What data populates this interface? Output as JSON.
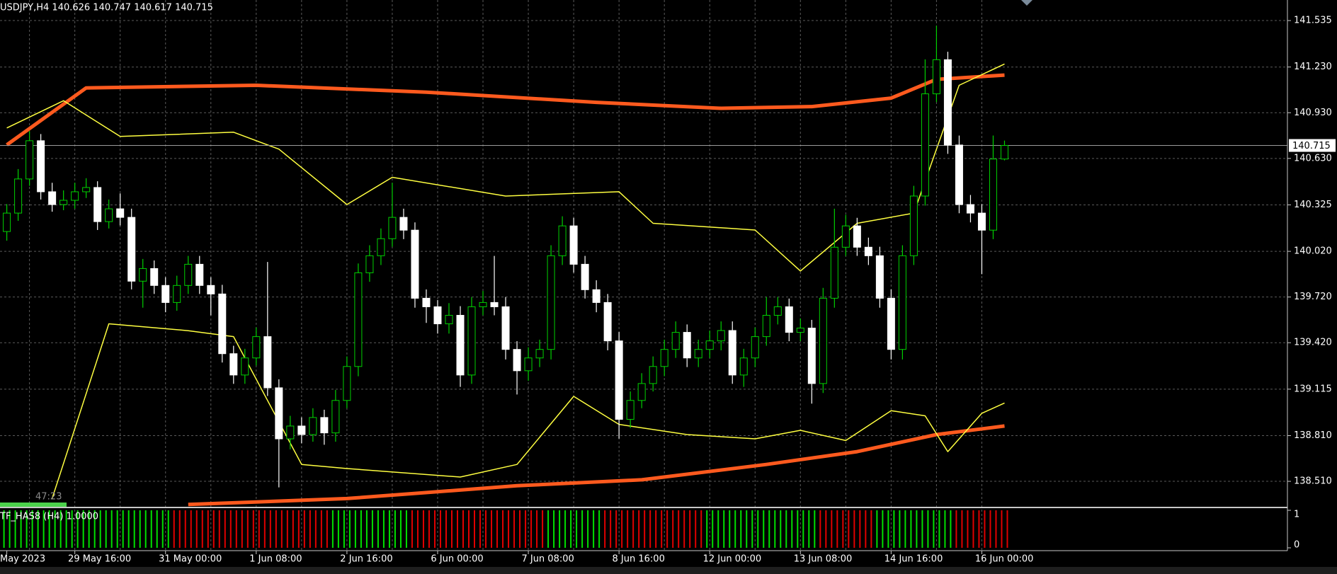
{
  "chart_data": {
    "type": "candlestick",
    "title": "USDJPY,H4  140.626 140.747 140.617 140.715",
    "current_price": 140.715,
    "timer": "47:23",
    "colors": {
      "up": "#00d000",
      "down": "#ffffff",
      "grid": "#5a5a5a",
      "price_line": "#9a9a9a"
    },
    "grid": true,
    "ylim": [
      138.343,
      141.67
    ],
    "yticks": [
      141.535,
      {
        "value": 141.23,
        "label": "141.230"
      },
      {
        "value": 140.93,
        "label": "140.930"
      },
      {
        "value": 140.63,
        "label": "140.630"
      },
      140.325,
      {
        "value": 140.02,
        "label": "140.020"
      },
      {
        "value": 139.72,
        "label": "139.720"
      },
      {
        "value": 139.42,
        "label": "139.420"
      },
      139.115,
      {
        "value": 138.81,
        "label": "138.810"
      },
      {
        "value": 138.51,
        "label": "138.510"
      }
    ],
    "categories": [
      "May 2023",
      null,
      null,
      null,
      null,
      null,
      "29 May 16:00",
      null,
      null,
      null,
      null,
      null,
      null,
      null,
      "31 May 00:00",
      null,
      null,
      null,
      null,
      null,
      null,
      null,
      "1 Jun 08:00",
      null,
      null,
      null,
      null,
      null,
      null,
      null,
      "2 Jun 16:00",
      null,
      null,
      null,
      null,
      null,
      null,
      null,
      "6 Jun 00:00",
      null,
      null,
      null,
      null,
      null,
      null,
      null,
      "7 Jun 08:00",
      null,
      null,
      null,
      null,
      null,
      null,
      null,
      "8 Jun 16:00",
      null,
      null,
      null,
      null,
      null,
      null,
      null,
      "12 Jun 00:00",
      null,
      null,
      null,
      null,
      null,
      null,
      null,
      "13 Jun 08:00",
      null,
      null,
      null,
      null,
      null,
      null,
      null,
      "14 Jun 16:00",
      null,
      null,
      null,
      null,
      null,
      null,
      null,
      "16 Jun 00:00",
      null,
      null
    ],
    "open": [
      140.15,
      140.271,
      140.495,
      140.746,
      140.411,
      140.327,
      140.355,
      140.411,
      140.439,
      140.215,
      140.299,
      140.243,
      139.824,
      139.907,
      139.796,
      139.684,
      139.796,
      139.935,
      139.796,
      139.74,
      139.348,
      139.208,
      139.32,
      139.46,
      139.124,
      138.789,
      138.873,
      138.817,
      138.929,
      138.828,
      139.041,
      139.264,
      139.879,
      139.991,
      140.103,
      140.243,
      140.159,
      139.712,
      139.656,
      139.544,
      139.6,
      139.208,
      139.656,
      139.684,
      139.656,
      139.376,
      139.236,
      139.32,
      139.376,
      139.991,
      140.187,
      139.935,
      139.768,
      139.684,
      139.432,
      138.917,
      139.041,
      139.152,
      139.264,
      139.376,
      139.488,
      139.32,
      139.376,
      139.432,
      139.5,
      139.208,
      139.32,
      139.46,
      139.6,
      139.656,
      139.488,
      139.516,
      139.152,
      139.712,
      140.047,
      140.187,
      140.047,
      139.991,
      139.712,
      139.376,
      139.991,
      140.383,
      141.054,
      141.278,
      140.718,
      140.327,
      140.271,
      140.159,
      140.626
    ],
    "high": [
      140.33,
      140.56,
      140.81,
      140.79,
      140.47,
      140.42,
      140.47,
      140.5,
      140.48,
      140.36,
      140.4,
      140.3,
      139.97,
      139.96,
      139.85,
      139.86,
      139.99,
      139.99,
      139.85,
      139.8,
      139.4,
      139.38,
      139.52,
      139.95,
      139.18,
      138.94,
      138.93,
      138.99,
      138.98,
      139.11,
      139.33,
      139.94,
      140.06,
      140.17,
      140.47,
      140.3,
      140.21,
      139.77,
      139.7,
      139.68,
      139.66,
      139.72,
      139.76,
      139.99,
      139.72,
      139.43,
      139.39,
      139.44,
      140.06,
      140.25,
      140.24,
      139.99,
      139.83,
      139.74,
      139.49,
      139.1,
      139.22,
      139.33,
      139.44,
      139.56,
      139.54,
      139.44,
      139.5,
      139.56,
      139.56,
      139.38,
      139.52,
      139.72,
      139.72,
      139.71,
      139.58,
      139.57,
      139.78,
      140.3,
      140.26,
      140.24,
      140.11,
      140.05,
      139.77,
      140.06,
      140.45,
      141.28,
      141.501,
      141.33,
      140.78,
      140.39,
      140.33,
      140.78,
      140.747
    ],
    "low": [
      140.09,
      140.22,
      140.45,
      140.36,
      140.28,
      140.29,
      140.3,
      140.37,
      140.16,
      140.17,
      140.19,
      139.77,
      139.65,
      139.74,
      139.62,
      139.63,
      139.74,
      139.74,
      139.6,
      139.29,
      139.15,
      139.15,
      139.27,
      139.07,
      138.47,
      138.72,
      138.76,
      138.77,
      138.75,
      138.77,
      138.99,
      139.2,
      139.82,
      139.93,
      140.05,
      140.1,
      139.65,
      139.55,
      139.48,
      139.48,
      139.13,
      139.15,
      139.6,
      139.6,
      139.31,
      139.08,
      139.17,
      139.26,
      139.31,
      139.93,
      139.88,
      139.71,
      139.62,
      139.37,
      138.79,
      138.86,
      138.99,
      139.1,
      139.2,
      139.32,
      139.26,
      139.26,
      139.32,
      139.37,
      139.15,
      139.13,
      139.26,
      139.4,
      139.54,
      139.43,
      139.43,
      139.02,
      139.09,
      139.65,
      139.99,
      139.99,
      139.93,
      139.65,
      139.31,
      139.31,
      139.93,
      140.32,
      141.0,
      140.66,
      140.27,
      140.21,
      139.87,
      140.1,
      140.617
    ],
    "close": [
      140.271,
      140.495,
      140.746,
      140.411,
      140.327,
      140.355,
      140.411,
      140.439,
      140.215,
      140.299,
      140.243,
      139.824,
      139.907,
      139.796,
      139.684,
      139.796,
      139.935,
      139.796,
      139.74,
      139.348,
      139.208,
      139.32,
      139.46,
      139.124,
      138.789,
      138.873,
      138.817,
      138.929,
      138.828,
      139.041,
      139.264,
      139.879,
      139.991,
      140.103,
      140.243,
      140.159,
      139.712,
      139.656,
      139.544,
      139.6,
      139.208,
      139.656,
      139.684,
      139.656,
      139.376,
      139.236,
      139.32,
      139.376,
      139.991,
      140.187,
      139.935,
      139.768,
      139.684,
      139.432,
      138.917,
      139.041,
      139.152,
      139.264,
      139.376,
      139.488,
      139.32,
      139.376,
      139.432,
      139.5,
      139.208,
      139.32,
      139.46,
      139.6,
      139.656,
      139.488,
      139.516,
      139.152,
      139.712,
      140.047,
      140.187,
      140.047,
      139.991,
      139.712,
      139.376,
      139.991,
      140.383,
      141.054,
      141.278,
      140.718,
      140.327,
      140.271,
      140.159,
      140.626,
      140.715
    ],
    "series": [
      {
        "color": "#ff5a1e",
        "width": 5,
        "x": [
          0,
          7,
          22,
          37,
          52,
          63,
          71,
          78,
          82,
          88
        ],
        "values": [
          140.719,
          141.093,
          141.11,
          141.065,
          140.998,
          140.959,
          140.97,
          141.026,
          141.149,
          141.177
        ]
      },
      {
        "color": "#ff5a1e",
        "width": 5,
        "x": [
          16,
          30,
          45,
          56,
          67,
          75,
          82,
          88
        ],
        "values": [
          138.358,
          138.397,
          138.481,
          138.52,
          138.621,
          138.705,
          138.817,
          138.873
        ]
      },
      {
        "color": "#ffff40",
        "width": 1.5,
        "x": [
          0,
          5,
          10,
          20,
          24,
          30,
          34,
          44,
          54,
          57,
          66,
          70,
          75,
          80,
          84,
          88
        ],
        "values": [
          140.83,
          141.009,
          140.774,
          140.802,
          140.691,
          140.327,
          140.506,
          140.383,
          140.411,
          140.204,
          140.16,
          139.891,
          140.204,
          140.271,
          141.11,
          141.25
        ]
      },
      {
        "color": "#ffff40",
        "width": 1.5,
        "x": [
          4,
          9,
          16,
          20,
          26,
          30,
          40,
          45,
          50,
          54,
          60,
          66,
          70,
          74,
          78,
          81,
          83,
          86,
          88
        ],
        "values": [
          138.397,
          139.544,
          139.499,
          139.46,
          138.621,
          138.594,
          138.538,
          138.621,
          139.068,
          138.884,
          138.817,
          138.789,
          138.845,
          138.778,
          138.974,
          138.94,
          138.705,
          138.957,
          139.024
        ]
      }
    ],
    "indicator": {
      "label": "TF_HAS8 (H4) 1.0000",
      "ylim": [
        0,
        1
      ],
      "yticks": [
        1,
        0
      ],
      "values": [
        1,
        1,
        1,
        1,
        1,
        1,
        1,
        1,
        1,
        1,
        1,
        1,
        1,
        1,
        1,
        1,
        1,
        1,
        1,
        1,
        1,
        1,
        1,
        1,
        1,
        1,
        1,
        1,
        1,
        1,
        1,
        1,
        1,
        1,
        1,
        1,
        1,
        1,
        1,
        1,
        1,
        1,
        1,
        1,
        1,
        1,
        1,
        1,
        1,
        1,
        1,
        1,
        1,
        1,
        1,
        1,
        1,
        1,
        1,
        1,
        1,
        1,
        1,
        1,
        1,
        1,
        1,
        1,
        1,
        1,
        1,
        1,
        1,
        1,
        1,
        1,
        1,
        1,
        1,
        1,
        1,
        1,
        1,
        1,
        1,
        1,
        1,
        1,
        1
      ],
      "colors": [
        "#00e000",
        "#00e000",
        "#00e000",
        "#00e000",
        "#00e000",
        "#00e000",
        "#00e000",
        "#00e000",
        "#00e000",
        "#00e000",
        "#00e000",
        "#00e000",
        "#00e000",
        "#00e000",
        "#00e000",
        "#e00000",
        "#e00000",
        "#e00000",
        "#e00000",
        "#e00000",
        "#e00000",
        "#e00000",
        "#e00000",
        "#e00000",
        "#e00000",
        "#e00000",
        "#e00000",
        "#e00000",
        "#e00000",
        "#00e000",
        "#00e000",
        "#00e000",
        "#00e000",
        "#00e000",
        "#00e000",
        "#00e000",
        "#e00000",
        "#e00000",
        "#e00000",
        "#e00000",
        "#e00000",
        "#e00000",
        "#e00000",
        "#e00000",
        "#e00000",
        "#e00000",
        "#e00000",
        "#e00000",
        "#00e000",
        "#00e000",
        "#00e000",
        "#00e000",
        "#00e000",
        "#e00000",
        "#e00000",
        "#e00000",
        "#e00000",
        "#e00000",
        "#e00000",
        "#e00000",
        "#e00000",
        "#e00000",
        "#00e000",
        "#00e000",
        "#00e000",
        "#00e000",
        "#00e000",
        "#00e000",
        "#00e000",
        "#00e000",
        "#00e000",
        "#00e000",
        "#e00000",
        "#e00000",
        "#e00000",
        "#e00000",
        "#e00000",
        "#00e000",
        "#00e000",
        "#00e000",
        "#00e000",
        "#00e000",
        "#00e000",
        "#00e000",
        "#e00000",
        "#e00000",
        "#e00000",
        "#e00000",
        "#e00000"
      ]
    }
  }
}
